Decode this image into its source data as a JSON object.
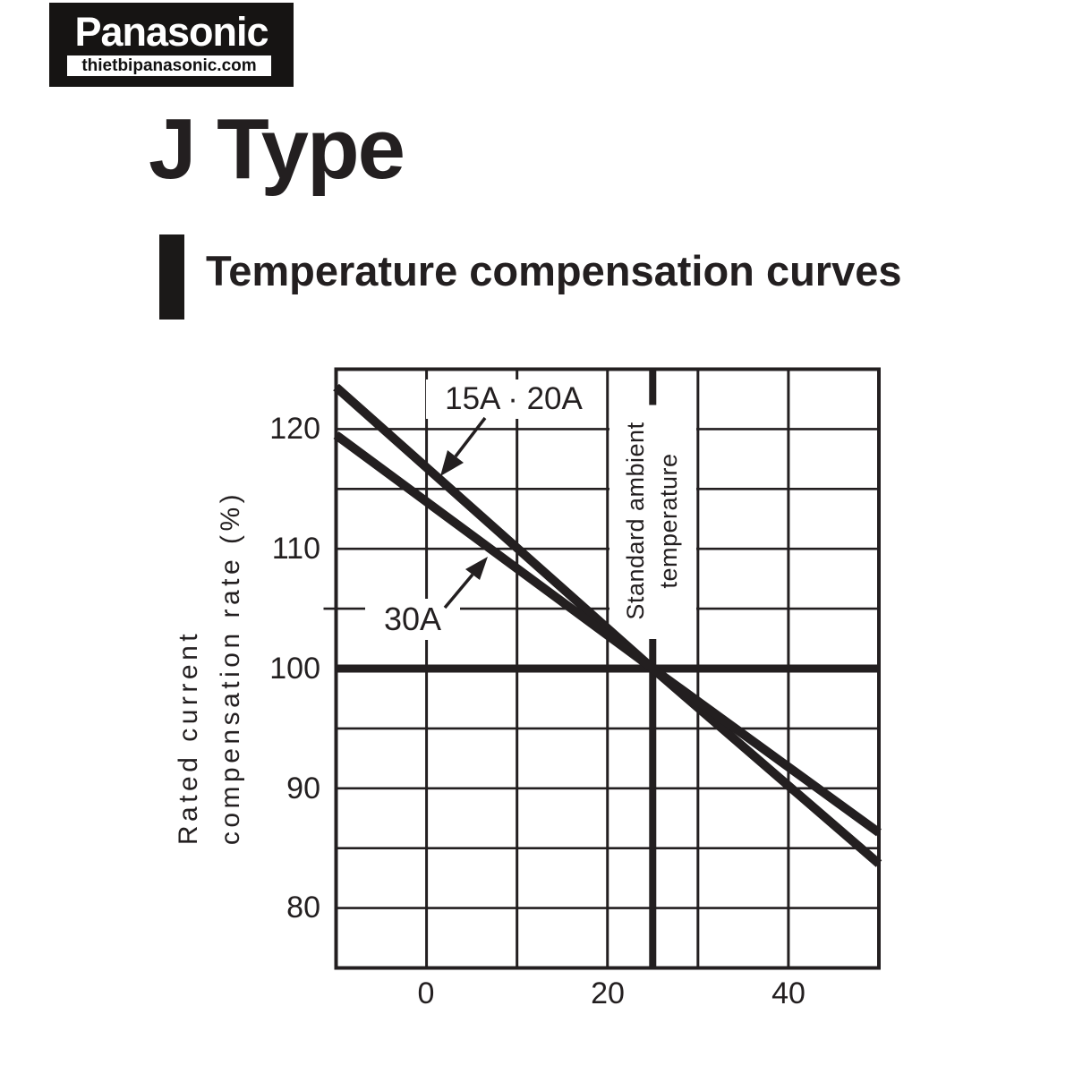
{
  "logo": {
    "brand": "Panasonic",
    "site": "thietbipanasonic.com"
  },
  "header": {
    "title": "J Type",
    "section": "Temperature compensation curves"
  },
  "chart_data": {
    "type": "line",
    "title": "Temperature compensation curves",
    "xlabel": "",
    "ylabel_lines": [
      "Rated current",
      "compensation rate (%)"
    ],
    "xlim": [
      -10,
      50
    ],
    "ylim": [
      75,
      125
    ],
    "grid_on": true,
    "x_gridlines": [
      0,
      10,
      20,
      30,
      40
    ],
    "y_gridlines": [
      80,
      85,
      90,
      95,
      105,
      110,
      115,
      120
    ],
    "x_ticks": [
      "0",
      "20",
      "40"
    ],
    "x_tick_values": [
      0,
      20,
      40
    ],
    "y_ticks": [
      "120",
      "110",
      "100",
      "90",
      "80"
    ],
    "y_tick_values": [
      120,
      110,
      100,
      90,
      80
    ],
    "reference": {
      "h_line_y": 100,
      "v_line_x": 25,
      "v_label_lines": [
        "Standard ambient",
        "temperature"
      ]
    },
    "series": [
      {
        "name": "15A · 20A",
        "x": [
          -10,
          25,
          50
        ],
        "y": [
          123.5,
          100,
          83.7
        ]
      },
      {
        "name": "30A",
        "x": [
          -10,
          25,
          50
        ],
        "y": [
          119.5,
          100,
          86.3
        ]
      }
    ],
    "ink": "#231f20"
  }
}
